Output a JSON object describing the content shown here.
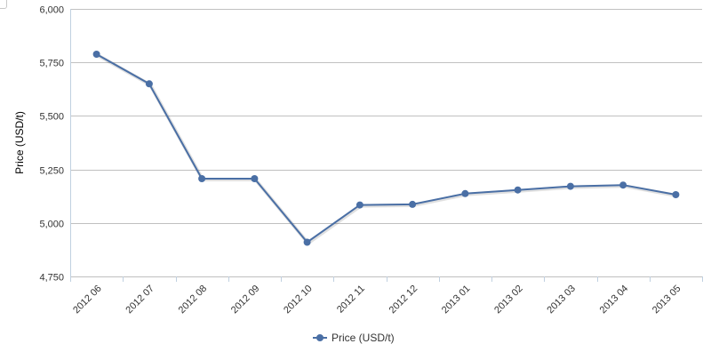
{
  "chart_data": {
    "type": "line",
    "categories": [
      "2012 06",
      "2012 07",
      "2012 08",
      "2012 09",
      "2012 10",
      "2012 11",
      "2012 12",
      "2013 01",
      "2013 02",
      "2013 03",
      "2013 04",
      "2013 05"
    ],
    "series": [
      {
        "name": "Price (USD/t)",
        "values": [
          5788,
          5650,
          5207,
          5207,
          4910,
          5084,
          5087,
          5137,
          5154,
          5171,
          5177,
          5132
        ],
        "color": "#4a6fa5"
      }
    ],
    "ylabel": "Price (USD/t)",
    "xlabel": "",
    "ylim": [
      4750,
      6000
    ],
    "yticks": [
      4750,
      5000,
      5250,
      5500,
      5750,
      6000
    ],
    "ytick_labels": [
      "4,750",
      "5,000",
      "5,250",
      "5,500",
      "5,750",
      "6,000"
    ],
    "grid": true,
    "legend_position": "bottom-center"
  },
  "icons": {
    "corner": "checkbox-icon"
  }
}
